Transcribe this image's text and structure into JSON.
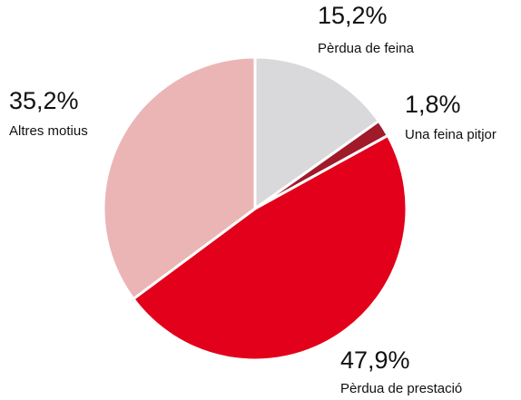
{
  "chart_data": {
    "type": "pie",
    "categories": [
      "Pèrdua de feina",
      "Una feina pitjor",
      "Pèrdua de prestació",
      "Altres motius"
    ],
    "values": [
      15.2,
      1.8,
      47.9,
      35.2
    ],
    "value_labels": [
      "15,2%",
      "1,8%",
      "47,9%",
      "35,2%"
    ],
    "colors": [
      "#d9d9db",
      "#a01a2a",
      "#e2001a",
      "#ebb5b6"
    ]
  }
}
